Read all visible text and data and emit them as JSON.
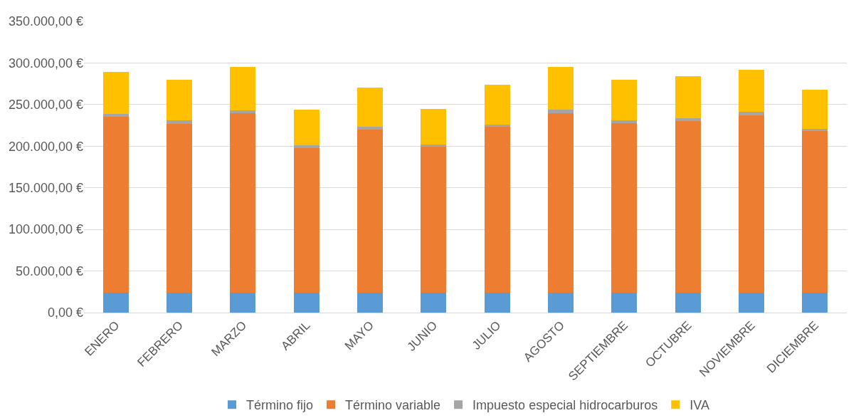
{
  "chart_data": {
    "type": "bar",
    "stacked": true,
    "categories": [
      "ENERO",
      "FEBRERO",
      "MARZO",
      "ABRIL",
      "MAYO",
      "JUNIO",
      "JULIO",
      "AGOSTO",
      "SEPTIEMBRE",
      "OCTUBRE",
      "NOVIEMBRE",
      "DICIEMBRE"
    ],
    "series": [
      {
        "name": "Término fijo",
        "color": "#5b9bd5",
        "values": [
          24000,
          24000,
          24000,
          24000,
          24000,
          24000,
          24000,
          24000,
          24000,
          24000,
          24000,
          24000
        ]
      },
      {
        "name": "Término variable",
        "color": "#ed7d31",
        "values": [
          211000,
          203000,
          216000,
          174000,
          196000,
          175000,
          199000,
          216000,
          204000,
          206000,
          213000,
          194000
        ]
      },
      {
        "name": "Impuesto especial hidrocarburos",
        "color": "#a5a5a5",
        "values": [
          4000,
          4000,
          3000,
          3000,
          3000,
          3000,
          3000,
          4000,
          3000,
          4000,
          4000,
          3000
        ]
      },
      {
        "name": "IVA",
        "color": "#ffc000",
        "values": [
          50000,
          49000,
          52000,
          43000,
          47000,
          43000,
          48000,
          51000,
          49000,
          50000,
          51000,
          47000
        ]
      }
    ],
    "ylim": [
      0,
      350000
    ],
    "yticks": [
      {
        "value": 0,
        "label": "0,00 €"
      },
      {
        "value": 50000,
        "label": "50.000,00 €"
      },
      {
        "value": 100000,
        "label": "100.000,00 €"
      },
      {
        "value": 150000,
        "label": "150.000,00 €"
      },
      {
        "value": 200000,
        "label": "200.000,00 €"
      },
      {
        "value": 250000,
        "label": "250.000,00 €"
      },
      {
        "value": 300000,
        "label": "300.000,00 €"
      },
      {
        "value": 350000,
        "label": "350.000,00 €"
      }
    ],
    "grid": "y",
    "legend": "bottom"
  }
}
